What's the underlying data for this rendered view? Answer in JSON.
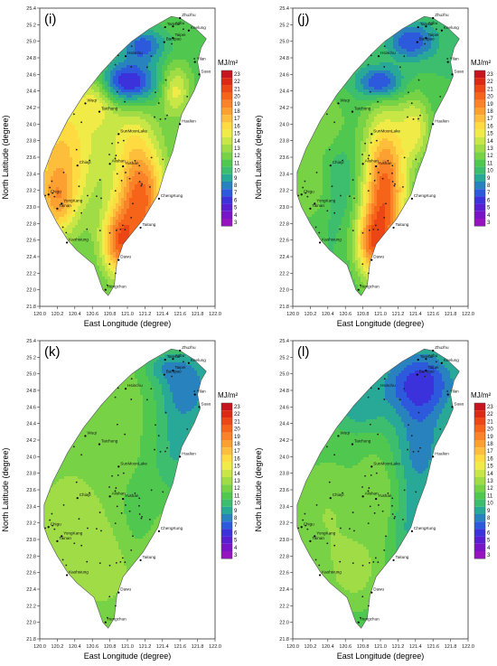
{
  "panels": [
    {
      "id": "p-i",
      "label": "(i)",
      "scheme": "high"
    },
    {
      "id": "p-j",
      "label": "(j)",
      "scheme": "higher"
    },
    {
      "id": "p-k",
      "label": "(k)",
      "scheme": "low"
    },
    {
      "id": "p-l",
      "label": "(l)",
      "scheme": "lower"
    }
  ],
  "axes": {
    "x_label": "East Longitude (degree)",
    "y_label": "North Latitude (degree)",
    "x_ticks": [
      "120.0",
      "120.2",
      "120.4",
      "120.6",
      "120.8",
      "121.0",
      "121.2",
      "121.4",
      "121.6",
      "121.8",
      "122.0"
    ],
    "y_ticks": [
      "25.4",
      "25.2",
      "25.0",
      "24.8",
      "24.6",
      "24.4",
      "24.2",
      "24.0",
      "23.8",
      "23.6",
      "23.4",
      "23.2",
      "23.0",
      "22.8",
      "22.6",
      "22.4",
      "22.2",
      "22.0",
      "21.8"
    ],
    "x_range": [
      120.0,
      122.0
    ],
    "y_range": [
      21.8,
      25.4
    ]
  },
  "colorbar": {
    "unit": "MJ/m²",
    "levels": [
      "23",
      "22",
      "21",
      "20",
      "19",
      "18",
      "17",
      "16",
      "15",
      "14",
      "13",
      "12",
      "11",
      "10",
      "9",
      "8",
      "7",
      "6",
      "5",
      "4",
      "3"
    ],
    "colors": [
      "#c8141e",
      "#dc2814",
      "#eb4614",
      "#f56419",
      "#fa8228",
      "#fca032",
      "#fdbe3c",
      "#fedc41",
      "#f0eb46",
      "#c8e646",
      "#a0dc46",
      "#78d246",
      "#50c850",
      "#3cbe6e",
      "#28a896",
      "#2882be",
      "#2d5adc",
      "#3c32dc",
      "#5a1ed2",
      "#7814c8",
      "#9614be"
    ]
  },
  "stations": [
    "Anbu",
    "Zhuzhu",
    "Tamsui",
    "Keelung",
    "Hsinchu",
    "Banqiao",
    "Taipei",
    "Yilan",
    "Suao",
    "Wuqi",
    "Taichung",
    "Hualien",
    "SunMoonLake",
    "Alishan",
    "Chiayi",
    "Yushan",
    "Chigu",
    "YongKang",
    "ChengKung",
    "Tainan",
    "Taitung",
    "Kaohsiung",
    "Dawu",
    "Hengchun"
  ]
}
